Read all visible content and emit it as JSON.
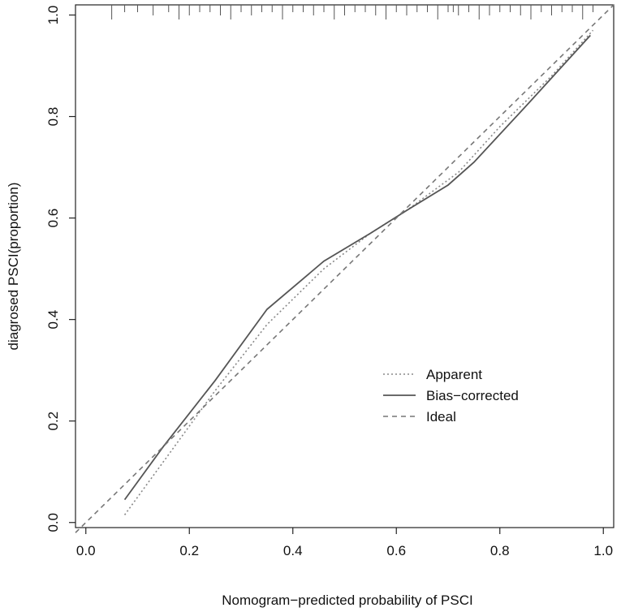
{
  "chart_data": {
    "type": "line",
    "title": "",
    "xlabel": "Nomogram−predicted probability of PSCI",
    "ylabel": "diagrosed PSCI(proportion)",
    "xlim": [
      -0.02,
      1.02
    ],
    "ylim": [
      -0.01,
      1.02
    ],
    "x_ticks": [
      "0.0",
      "0.2",
      "0.4",
      "0.6",
      "0.8",
      "1.0"
    ],
    "y_ticks": [
      "0.0",
      "0.2",
      "0.4",
      "0.6",
      "0.8",
      "1.0"
    ],
    "grid": false,
    "legend_position": "right",
    "series": [
      {
        "name": "Apparent",
        "style": "dotted",
        "color": "#888888",
        "x": [
          0.075,
          0.15,
          0.25,
          0.35,
          0.46,
          0.55,
          0.62,
          0.72,
          0.8,
          0.9,
          0.98
        ],
        "y": [
          0.015,
          0.12,
          0.26,
          0.39,
          0.5,
          0.57,
          0.615,
          0.69,
          0.78,
          0.88,
          0.97
        ]
      },
      {
        "name": "Bias−corrected",
        "style": "solid",
        "color": "#555555",
        "x": [
          0.075,
          0.15,
          0.25,
          0.35,
          0.46,
          0.55,
          0.62,
          0.7,
          0.75,
          0.85,
          0.975
        ],
        "y": [
          0.045,
          0.15,
          0.28,
          0.42,
          0.515,
          0.57,
          0.615,
          0.665,
          0.71,
          0.82,
          0.96
        ]
      },
      {
        "name": "Ideal",
        "style": "dashed",
        "color": "#777777",
        "x": [
          0.0,
          1.02
        ],
        "y": [
          0.0,
          1.02
        ]
      }
    ],
    "rug_x": [
      0.05,
      0.075,
      0.1,
      0.13,
      0.16,
      0.18,
      0.2,
      0.22,
      0.24,
      0.26,
      0.28,
      0.3,
      0.32,
      0.34,
      0.36,
      0.38,
      0.4,
      0.42,
      0.44,
      0.46,
      0.48,
      0.5,
      0.52,
      0.54,
      0.56,
      0.58,
      0.6,
      0.62,
      0.64,
      0.66,
      0.68,
      0.7,
      0.71,
      0.72,
      0.74,
      0.76,
      0.78,
      0.8,
      0.82,
      0.84,
      0.86,
      0.88,
      0.9,
      0.92,
      0.94,
      0.96,
      0.98
    ]
  }
}
